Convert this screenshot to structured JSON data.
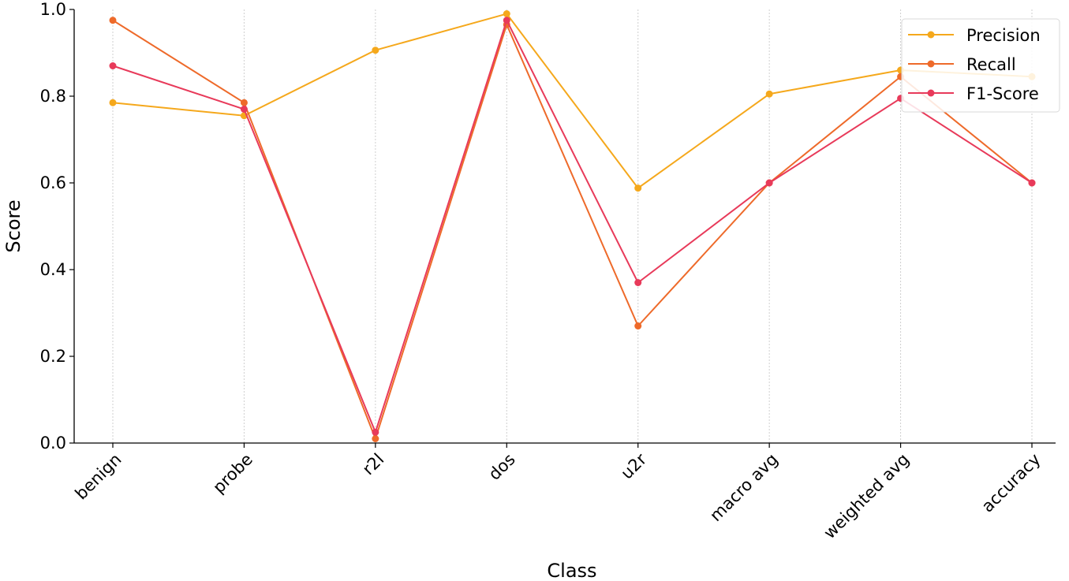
{
  "chart_data": {
    "type": "line",
    "xlabel": "Class",
    "ylabel": "Score",
    "ylim": [
      0,
      1.0
    ],
    "yticks": [
      "0.0",
      "0.2",
      "0.4",
      "0.6",
      "0.8",
      "1.0"
    ],
    "categories": [
      "benign",
      "probe",
      "r2l",
      "dos",
      "u2r",
      "macro avg",
      "weighted avg",
      "accuracy"
    ],
    "grid": "vertical dashed lines at categories",
    "legend_position": "top-right",
    "series": [
      {
        "name": "Precision",
        "color": "#F5A81C",
        "values": [
          0.785,
          0.755,
          0.906,
          0.99,
          0.588,
          0.805,
          0.86,
          0.845
        ]
      },
      {
        "name": "Recall",
        "color": "#EE6A2A",
        "values": [
          0.975,
          0.785,
          0.01,
          0.965,
          0.27,
          0.6,
          0.845,
          0.6
        ]
      },
      {
        "name": "F1-Score",
        "color": "#E83A5A",
        "values": [
          0.87,
          0.77,
          0.025,
          0.975,
          0.37,
          0.6,
          0.795,
          0.6
        ]
      }
    ]
  }
}
